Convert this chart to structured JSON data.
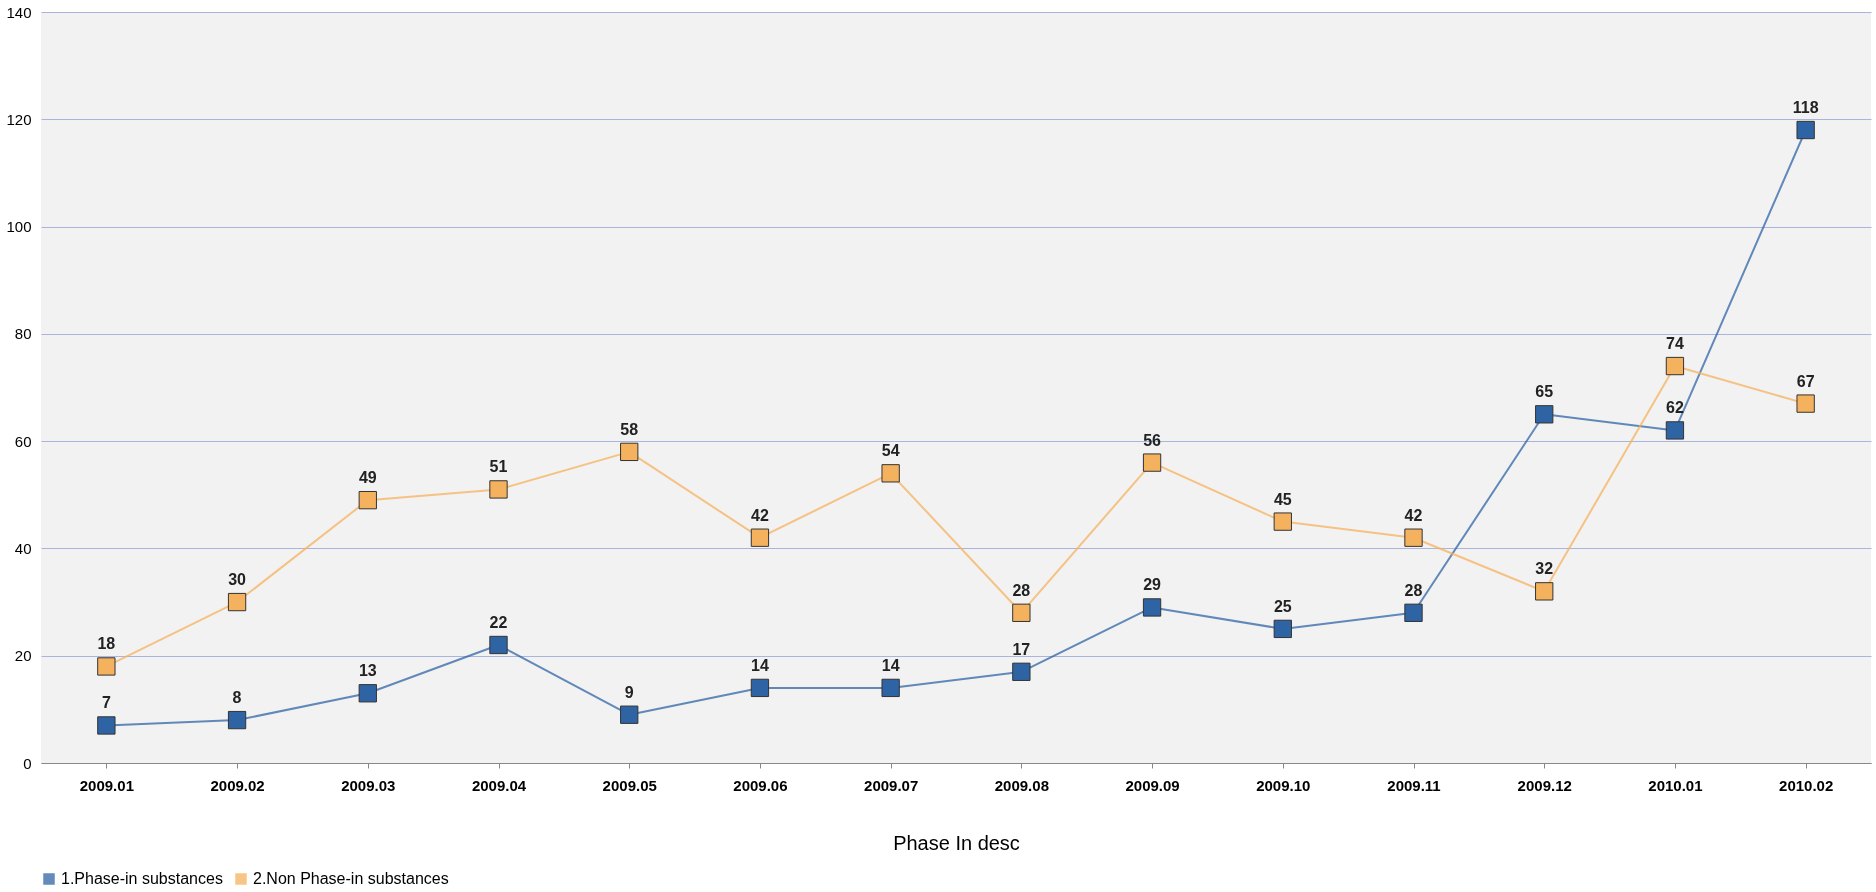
{
  "chart_data": {
    "type": "line",
    "xlabel": "Phase In desc",
    "categories": [
      "2009.01",
      "2009.02",
      "2009.03",
      "2009.04",
      "2009.05",
      "2009.06",
      "2009.07",
      "2009.08",
      "2009.09",
      "2009.10",
      "2009.11",
      "2009.12",
      "2010.01",
      "2010.02"
    ],
    "series": [
      {
        "name": "1.Phase-in substances",
        "color": "#2f64a4",
        "values": [
          7,
          8,
          13,
          22,
          9,
          14,
          14,
          17,
          29,
          25,
          28,
          65,
          62,
          118
        ]
      },
      {
        "name": "2.Non Phase-in substances",
        "color": "#f5b25e",
        "values": [
          18,
          30,
          49,
          51,
          58,
          42,
          54,
          28,
          56,
          45,
          42,
          32,
          74,
          67
        ]
      }
    ],
    "ylim": [
      0,
      140
    ],
    "yticks": [
      0,
      20,
      40,
      60,
      80,
      100,
      120,
      140
    ],
    "grid": "y",
    "legend": "bottom",
    "marker": "square",
    "line_style": "solid",
    "data_labels": true
  }
}
